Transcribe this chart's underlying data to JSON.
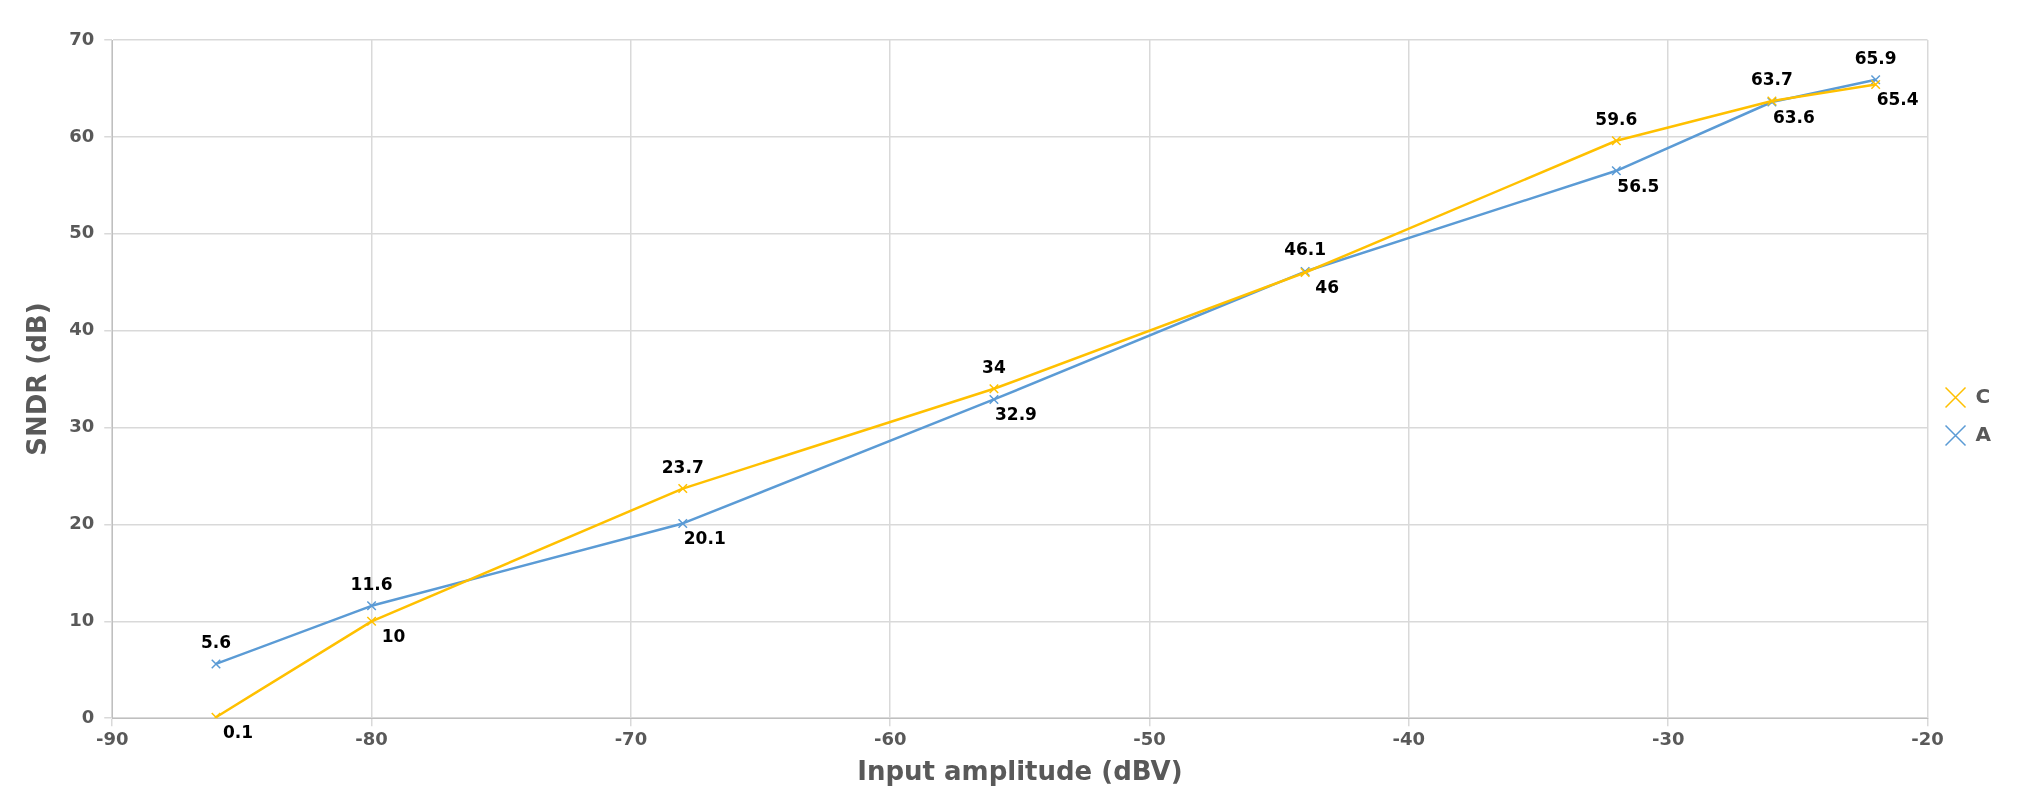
{
  "chart_data": {
    "type": "line",
    "xlabel": "Input amplitude (dBV)",
    "ylabel": "SNDR (dB)",
    "x": [
      -86,
      -80,
      -68,
      -56,
      -44,
      -32,
      -26,
      -22
    ],
    "series": [
      {
        "name": "C",
        "color": "#ffc000",
        "marker": "cross",
        "values": [
          0.1,
          10,
          23.7,
          34,
          46,
          59.6,
          63.7,
          65.4
        ]
      },
      {
        "name": "A",
        "color": "#5b9bd5",
        "marker": "cross",
        "values": [
          5.6,
          11.6,
          20.1,
          32.9,
          46.1,
          56.5,
          63.6,
          65.9
        ]
      }
    ],
    "xlim": [
      -90,
      -20
    ],
    "xticks": [
      -90,
      -80,
      -70,
      -60,
      -50,
      -40,
      -30,
      -20
    ],
    "ylim": [
      0,
      70
    ],
    "yticks": [
      0,
      10,
      20,
      30,
      40,
      50,
      60,
      70
    ],
    "grid": true,
    "legend": "right",
    "data_labels": true
  }
}
